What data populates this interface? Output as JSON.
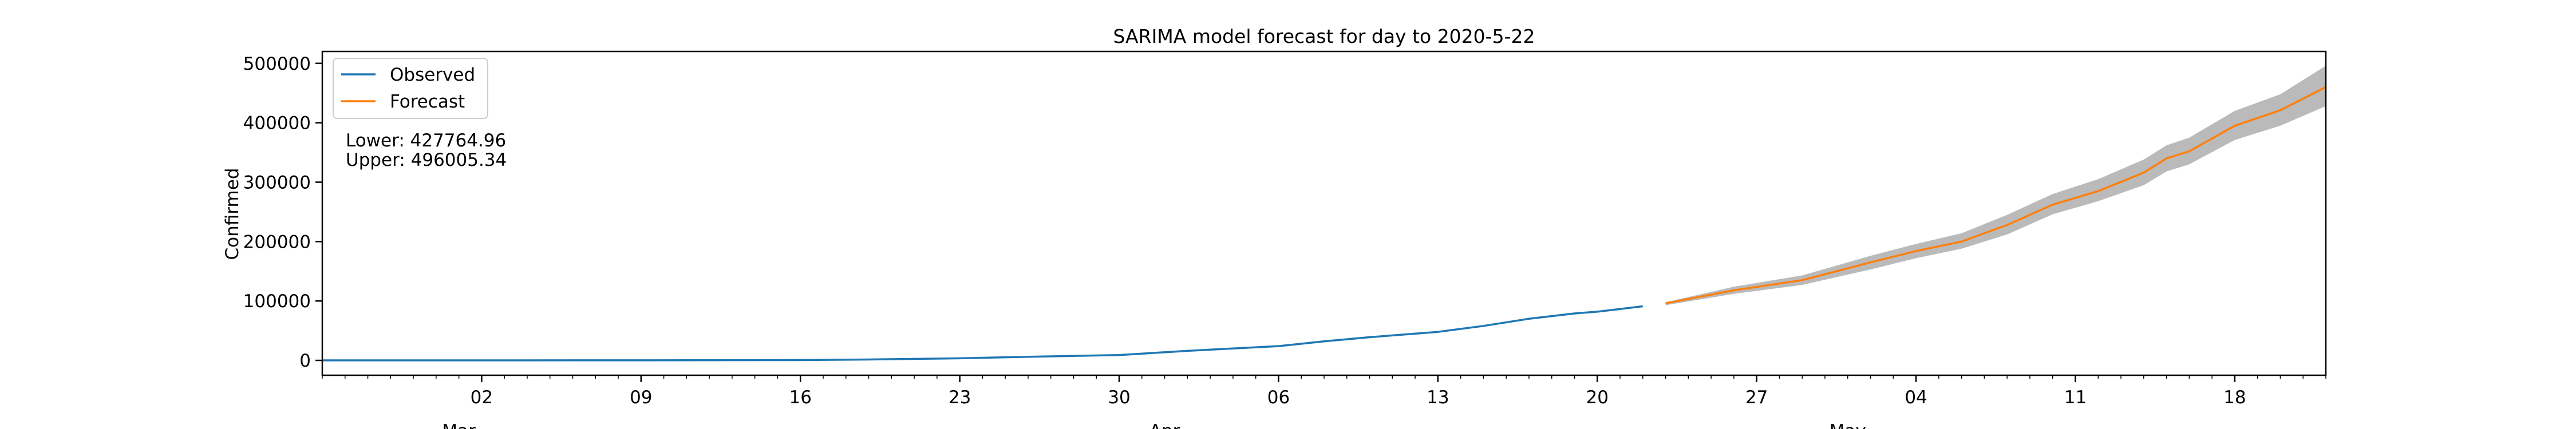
{
  "chart_data": {
    "type": "line",
    "title": "SARIMA model forecast for day to 2020-5-22",
    "ylabel": "Confirmed",
    "xlabel": "",
    "ylim": [
      -25000,
      520000
    ],
    "xlim": [
      "2020-02-24",
      "2020-05-22"
    ],
    "y_ticks": [
      0,
      100000,
      200000,
      300000,
      400000,
      500000
    ],
    "y_tick_labels": [
      "0",
      "100000",
      "200000",
      "300000",
      "400000",
      "500000"
    ],
    "x_ticks": [
      "2020-03-02",
      "2020-03-09",
      "2020-03-16",
      "2020-03-23",
      "2020-03-30",
      "2020-04-06",
      "2020-04-13",
      "2020-04-20",
      "2020-04-27",
      "2020-05-04",
      "2020-05-11",
      "2020-05-18"
    ],
    "x_tick_labels": [
      "02",
      "09",
      "16",
      "23",
      "30",
      "06",
      "13",
      "20",
      "27",
      "04",
      "11",
      "18"
    ],
    "x_major_labels": [
      {
        "date": "2020-03-01",
        "label": "Mar"
      },
      {
        "date": "2020-04-01",
        "label": "Apr"
      },
      {
        "date": "2020-05-01",
        "label": "May"
      }
    ],
    "legend": {
      "placement": "upper-left",
      "entries": [
        "Observed",
        "Forecast"
      ]
    },
    "annotation": {
      "lower": "Lower: 427764.96",
      "upper": "Upper: 496005.34"
    },
    "colors": {
      "observed": "#1f77b4",
      "forecast": "#ff7f0e",
      "band": "#b3b3b3"
    },
    "series": [
      {
        "name": "Observed",
        "x": [
          "2020-02-24",
          "2020-03-02",
          "2020-03-09",
          "2020-03-16",
          "2020-03-19",
          "2020-03-23",
          "2020-03-26",
          "2020-03-30",
          "2020-04-02",
          "2020-04-06",
          "2020-04-08",
          "2020-04-10",
          "2020-04-13",
          "2020-04-15",
          "2020-04-17",
          "2020-04-19",
          "2020-04-20",
          "2020-04-22"
        ],
        "y": [
          0,
          0,
          100,
          500,
          1500,
          3500,
          6000,
          9000,
          16000,
          24000,
          32000,
          39000,
          48000,
          58000,
          70000,
          79000,
          82000,
          91000
        ]
      },
      {
        "name": "Forecast",
        "x": [
          "2020-04-23",
          "2020-04-26",
          "2020-04-29",
          "2020-05-02",
          "2020-05-04",
          "2020-05-06",
          "2020-05-08",
          "2020-05-10",
          "2020-05-12",
          "2020-05-14",
          "2020-05-15",
          "2020-05-16",
          "2020-05-18",
          "2020-05-20",
          "2020-05-22"
        ],
        "y": [
          96000,
          118000,
          135000,
          165000,
          184000,
          200000,
          228000,
          262000,
          285000,
          316000,
          340000,
          352000,
          395000,
          421000,
          460000
        ]
      }
    ],
    "confidence_band": {
      "x": [
        "2020-04-23",
        "2020-04-26",
        "2020-04-29",
        "2020-05-02",
        "2020-05-04",
        "2020-05-06",
        "2020-05-08",
        "2020-05-10",
        "2020-05-12",
        "2020-05-14",
        "2020-05-15",
        "2020-05-16",
        "2020-05-18",
        "2020-05-20",
        "2020-05-22"
      ],
      "lower": [
        93000,
        112000,
        127000,
        153000,
        172000,
        188000,
        212000,
        246000,
        268000,
        295000,
        318000,
        330000,
        371000,
        395000,
        428000
      ],
      "upper": [
        98000,
        124000,
        143000,
        176000,
        196000,
        214000,
        245000,
        280000,
        305000,
        338000,
        362000,
        375000,
        420000,
        448000,
        496000
      ]
    }
  }
}
